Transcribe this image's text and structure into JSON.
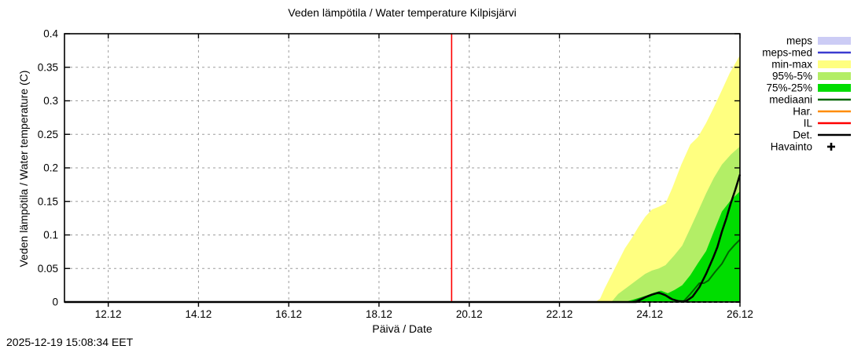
{
  "timestamp": "2025-12-19 15:08:34 EET",
  "chart_data": {
    "type": "area",
    "title": "Veden lämpötila / Water temperature Kilpisjärvi",
    "xlabel": "Päivä / Date",
    "ylabel": "Veden lämpötila / Water temperature (C)",
    "xlim": [
      11.03,
      26.0
    ],
    "ylim": [
      0,
      0.4
    ],
    "grid": true,
    "x_ticks": [
      {
        "value": 12,
        "label": "12.12"
      },
      {
        "value": 14,
        "label": "14.12"
      },
      {
        "value": 16,
        "label": "16.12"
      },
      {
        "value": 18,
        "label": "18.12"
      },
      {
        "value": 20,
        "label": "20.12"
      },
      {
        "value": 22,
        "label": "22.12"
      },
      {
        "value": 24,
        "label": "24.12"
      },
      {
        "value": 26,
        "label": "26.12"
      }
    ],
    "y_ticks": [
      {
        "value": 0,
        "label": "0"
      },
      {
        "value": 0.05,
        "label": "0.05"
      },
      {
        "value": 0.1,
        "label": "0.1"
      },
      {
        "value": 0.15,
        "label": "0.15"
      },
      {
        "value": 0.2,
        "label": "0.2"
      },
      {
        "value": 0.25,
        "label": "0.25"
      },
      {
        "value": 0.3,
        "label": "0.3"
      },
      {
        "value": 0.35,
        "label": "0.35"
      },
      {
        "value": 0.4,
        "label": "0.4"
      }
    ],
    "current_time_line": {
      "x": 19.61,
      "color": "#ff0000"
    },
    "bands": [
      {
        "name": "min-max",
        "color": "#ffff80",
        "lower": 0,
        "upper": [
          [
            11.03,
            0
          ],
          [
            22.8,
            0
          ],
          [
            22.9,
            0.005
          ],
          [
            23.0,
            0.02
          ],
          [
            23.15,
            0.04
          ],
          [
            23.3,
            0.06
          ],
          [
            23.45,
            0.08
          ],
          [
            23.6,
            0.095
          ],
          [
            23.75,
            0.112
          ],
          [
            23.9,
            0.127
          ],
          [
            24.05,
            0.138
          ],
          [
            24.2,
            0.142
          ],
          [
            24.35,
            0.147
          ],
          [
            24.5,
            0.17
          ],
          [
            24.7,
            0.205
          ],
          [
            24.9,
            0.235
          ],
          [
            25.07,
            0.246
          ],
          [
            25.25,
            0.267
          ],
          [
            25.42,
            0.29
          ],
          [
            25.6,
            0.316
          ],
          [
            25.77,
            0.341
          ],
          [
            26.0,
            0.368
          ]
        ]
      },
      {
        "name": "95%-5%",
        "color": "#b3ee66",
        "lower": 0,
        "upper": [
          [
            11.03,
            0
          ],
          [
            23.15,
            0
          ],
          [
            23.3,
            0.012
          ],
          [
            23.5,
            0.022
          ],
          [
            23.7,
            0.032
          ],
          [
            23.9,
            0.042
          ],
          [
            24.05,
            0.047
          ],
          [
            24.2,
            0.05
          ],
          [
            24.35,
            0.055
          ],
          [
            24.55,
            0.07
          ],
          [
            24.72,
            0.084
          ],
          [
            24.9,
            0.11
          ],
          [
            25.07,
            0.135
          ],
          [
            25.25,
            0.162
          ],
          [
            25.42,
            0.185
          ],
          [
            25.6,
            0.205
          ],
          [
            25.8,
            0.22
          ],
          [
            26.0,
            0.232
          ]
        ]
      },
      {
        "name": "75%-25%",
        "color": "#00dd00",
        "lower": 0,
        "upper": [
          [
            11.03,
            0
          ],
          [
            23.45,
            0
          ],
          [
            23.7,
            0.005
          ],
          [
            23.9,
            0.009
          ],
          [
            24.1,
            0.014
          ],
          [
            24.25,
            0.017
          ],
          [
            24.4,
            0.013
          ],
          [
            24.55,
            0.018
          ],
          [
            24.72,
            0.025
          ],
          [
            24.9,
            0.04
          ],
          [
            25.07,
            0.058
          ],
          [
            25.25,
            0.076
          ],
          [
            25.42,
            0.105
          ],
          [
            25.6,
            0.135
          ],
          [
            25.8,
            0.152
          ],
          [
            26.0,
            0.165
          ]
        ]
      }
    ],
    "lines": [
      {
        "name": "mediaani",
        "color": "#006400",
        "width": 2,
        "points": [
          [
            11.03,
            0
          ],
          [
            23.6,
            0
          ],
          [
            23.8,
            0.005
          ],
          [
            24.0,
            0.01
          ],
          [
            24.15,
            0.013
          ],
          [
            24.3,
            0.012
          ],
          [
            24.45,
            0.005
          ],
          [
            24.6,
            0.002
          ],
          [
            24.75,
            0.001
          ],
          [
            24.9,
            0.012
          ],
          [
            25.0,
            0.02
          ],
          [
            25.1,
            0.028
          ],
          [
            25.2,
            0.028
          ],
          [
            25.3,
            0.032
          ],
          [
            25.45,
            0.045
          ],
          [
            25.6,
            0.057
          ],
          [
            25.75,
            0.075
          ],
          [
            25.88,
            0.085
          ],
          [
            26.0,
            0.093
          ]
        ]
      },
      {
        "name": "Det.",
        "color": "#000000",
        "width": 2.5,
        "points": [
          [
            11.03,
            0
          ],
          [
            23.7,
            0
          ],
          [
            23.9,
            0.007
          ],
          [
            24.05,
            0.011
          ],
          [
            24.2,
            0.014
          ],
          [
            24.35,
            0.01
          ],
          [
            24.5,
            0.004
          ],
          [
            24.65,
            0.001
          ],
          [
            24.8,
            0.001
          ],
          [
            24.95,
            0.008
          ],
          [
            25.1,
            0.022
          ],
          [
            25.25,
            0.042
          ],
          [
            25.4,
            0.065
          ],
          [
            25.5,
            0.082
          ],
          [
            25.6,
            0.105
          ],
          [
            25.7,
            0.125
          ],
          [
            25.8,
            0.148
          ],
          [
            25.9,
            0.168
          ],
          [
            26.0,
            0.19
          ]
        ]
      }
    ],
    "legend": {
      "position": "right",
      "items": [
        {
          "label": "meps",
          "type": "band",
          "color": "#ccccf5"
        },
        {
          "label": "meps-med",
          "type": "line",
          "color": "#3c3cd0"
        },
        {
          "label": "min-max",
          "type": "band",
          "color": "#ffff80"
        },
        {
          "label": "95%-5%",
          "type": "band",
          "color": "#b3ee66"
        },
        {
          "label": "75%-25%",
          "type": "band",
          "color": "#00dd00"
        },
        {
          "label": "mediaani",
          "type": "line",
          "color": "#006400"
        },
        {
          "label": "Har.",
          "type": "line",
          "color": "#ff8c00"
        },
        {
          "label": "IL",
          "type": "line",
          "color": "#ff0000"
        },
        {
          "label": "Det.",
          "type": "line",
          "color": "#000000"
        },
        {
          "label": "Havainto",
          "type": "marker-plus",
          "color": "#000000"
        }
      ]
    }
  }
}
